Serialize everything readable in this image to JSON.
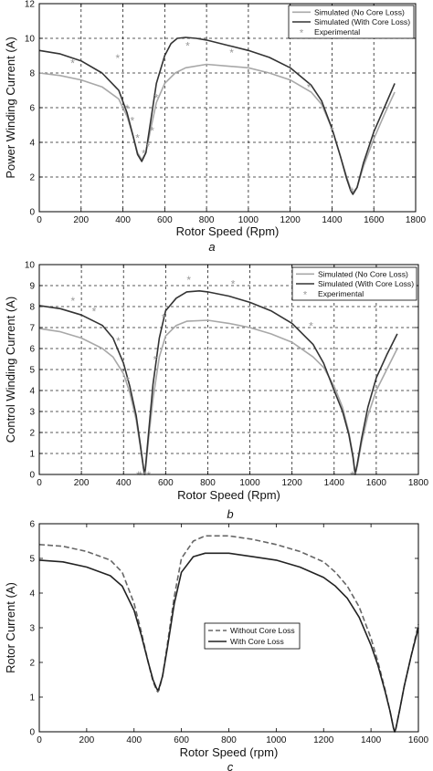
{
  "figure": {
    "panel_labels": [
      "a",
      "b",
      "c"
    ]
  },
  "chart_data": [
    {
      "type": "line",
      "panel_label": "a",
      "xlabel": "Rotor Speed (Rpm)",
      "ylabel": "Power Winding Current (A)",
      "xlim": [
        0,
        1800
      ],
      "ylim": [
        0,
        12
      ],
      "xticks": [
        0,
        200,
        400,
        600,
        800,
        1000,
        1200,
        1400,
        1600,
        1800
      ],
      "yticks": [
        0,
        2,
        4,
        6,
        8,
        10,
        12
      ],
      "grid": true,
      "legend_position": "top-right",
      "series": [
        {
          "name": "Simulated (No Core Loss)",
          "style": "line",
          "color": "#a8a8a8",
          "x": [
            0,
            100,
            200,
            300,
            380,
            420,
            450,
            470,
            490,
            510,
            530,
            560,
            600,
            650,
            700,
            800,
            900,
            1000,
            1100,
            1200,
            1300,
            1350,
            1400,
            1440,
            1470,
            1490,
            1500,
            1520,
            1550,
            1600,
            1650,
            1700
          ],
          "y": [
            8.0,
            7.85,
            7.6,
            7.2,
            6.5,
            5.5,
            4.3,
            3.4,
            3.0,
            3.4,
            4.6,
            6.3,
            7.4,
            8.0,
            8.3,
            8.5,
            8.4,
            8.3,
            8.0,
            7.6,
            6.9,
            6.2,
            4.8,
            3.2,
            2.0,
            1.3,
            1.1,
            1.4,
            2.6,
            4.2,
            5.6,
            6.9
          ]
        },
        {
          "name": "Simulated (With Core Loss)",
          "style": "line",
          "color": "#333333",
          "x": [
            0,
            100,
            200,
            300,
            380,
            420,
            450,
            470,
            490,
            510,
            530,
            560,
            600,
            630,
            660,
            700,
            750,
            800,
            900,
            1000,
            1100,
            1200,
            1300,
            1350,
            1400,
            1440,
            1470,
            1490,
            1500,
            1520,
            1550,
            1600,
            1650,
            1700
          ],
          "y": [
            9.3,
            9.1,
            8.7,
            8.0,
            7.0,
            5.7,
            4.3,
            3.3,
            2.9,
            3.4,
            5.0,
            7.4,
            9.0,
            9.7,
            10.0,
            10.05,
            10.0,
            9.9,
            9.6,
            9.3,
            8.9,
            8.3,
            7.3,
            6.4,
            4.8,
            3.2,
            1.9,
            1.2,
            1.0,
            1.4,
            2.8,
            4.6,
            6.0,
            7.4
          ]
        },
        {
          "name": "Experimental",
          "style": "markers",
          "color": "#999999",
          "x": [
            160,
            375,
            420,
            445,
            470,
            500,
            520,
            540,
            560,
            710,
            920,
            1290,
            1400,
            1495
          ],
          "y": [
            8.6,
            8.9,
            6.0,
            5.3,
            4.3,
            3.4,
            3.8,
            4.7,
            6.6,
            9.6,
            9.2,
            7.2,
            4.7,
            1.2
          ]
        }
      ]
    },
    {
      "type": "line",
      "panel_label": "b",
      "xlabel": "Rotor Speed (Rpm)",
      "ylabel": "Control Winding Current (A)",
      "xlim": [
        0,
        1800
      ],
      "ylim": [
        0,
        10
      ],
      "xticks": [
        0,
        200,
        400,
        600,
        800,
        1000,
        1200,
        1400,
        1600,
        1800
      ],
      "yticks": [
        0,
        1,
        2,
        3,
        4,
        5,
        6,
        7,
        8,
        9,
        10
      ],
      "grid": true,
      "legend_position": "top-right",
      "series": [
        {
          "name": "Simulated (No Core Loss)",
          "style": "line",
          "color": "#a8a8a8",
          "x": [
            0,
            100,
            200,
            300,
            350,
            400,
            430,
            460,
            480,
            495,
            500,
            505,
            520,
            540,
            570,
            600,
            650,
            700,
            800,
            900,
            1000,
            1100,
            1200,
            1300,
            1350,
            1400,
            1440,
            1470,
            1490,
            1500,
            1510,
            1530,
            1560,
            1600,
            1650,
            1700
          ],
          "y": [
            6.95,
            6.8,
            6.5,
            6.0,
            5.6,
            4.8,
            3.9,
            2.6,
            1.3,
            0.3,
            0.0,
            0.3,
            1.8,
            3.6,
            5.6,
            6.6,
            7.1,
            7.3,
            7.35,
            7.2,
            7.0,
            6.7,
            6.3,
            5.6,
            5.1,
            4.2,
            3.2,
            2.0,
            0.9,
            0.0,
            0.4,
            1.5,
            2.8,
            4.0,
            5.0,
            6.0
          ]
        },
        {
          "name": "Simulated (With Core Loss)",
          "style": "line",
          "color": "#333333",
          "x": [
            0,
            100,
            200,
            300,
            350,
            400,
            430,
            460,
            480,
            495,
            500,
            505,
            520,
            540,
            570,
            600,
            650,
            700,
            760,
            800,
            900,
            1000,
            1100,
            1200,
            1300,
            1350,
            1400,
            1440,
            1470,
            1490,
            1500,
            1510,
            1530,
            1560,
            1600,
            1650,
            1700
          ],
          "y": [
            8.05,
            7.9,
            7.6,
            7.1,
            6.5,
            5.3,
            4.2,
            2.8,
            1.4,
            0.3,
            0.0,
            0.4,
            2.1,
            4.3,
            6.5,
            7.8,
            8.4,
            8.7,
            8.75,
            8.7,
            8.5,
            8.2,
            7.8,
            7.2,
            6.2,
            5.3,
            4.0,
            3.0,
            1.9,
            0.8,
            0.0,
            0.5,
            1.7,
            3.2,
            4.6,
            5.7,
            6.7
          ]
        },
        {
          "name": "Experimental",
          "style": "markers",
          "color": "#999999",
          "x": [
            160,
            260,
            375,
            420,
            470,
            480,
            500,
            520,
            550,
            590,
            710,
            920,
            1290,
            1485,
            1495
          ],
          "y": [
            8.3,
            7.8,
            6.4,
            4.5,
            0.0,
            0.0,
            0.0,
            0.0,
            5.5,
            7.5,
            9.3,
            9.1,
            7.1,
            0.0,
            0.0
          ]
        }
      ]
    },
    {
      "type": "line",
      "panel_label": "c",
      "xlabel": "Rotor Speed (rpm)",
      "ylabel": "Rotor Current (A)",
      "xlim": [
        0,
        1600
      ],
      "ylim": [
        0,
        6
      ],
      "xticks": [
        0,
        200,
        400,
        600,
        800,
        1000,
        1200,
        1400,
        1600
      ],
      "yticks": [
        0,
        1,
        2,
        3,
        4,
        5,
        6
      ],
      "grid": false,
      "legend_position": "center",
      "series": [
        {
          "name": "Without Core Loss",
          "style": "dashed",
          "color": "#666666",
          "x": [
            0,
            100,
            200,
            300,
            350,
            400,
            430,
            460,
            480,
            495,
            500,
            505,
            520,
            540,
            570,
            600,
            650,
            700,
            800,
            900,
            1000,
            1100,
            1200,
            1250,
            1300,
            1350,
            1400,
            1430,
            1460,
            1480,
            1495,
            1500,
            1505,
            1520,
            1540,
            1570,
            1600
          ],
          "y": [
            5.4,
            5.35,
            5.2,
            4.95,
            4.6,
            3.7,
            2.9,
            2.0,
            1.45,
            1.2,
            1.15,
            1.2,
            1.6,
            2.5,
            3.9,
            5.0,
            5.5,
            5.65,
            5.65,
            5.55,
            5.4,
            5.2,
            4.9,
            4.6,
            4.2,
            3.6,
            2.7,
            2.0,
            1.2,
            0.6,
            0.1,
            0.0,
            0.1,
            0.6,
            1.3,
            2.2,
            3.1
          ]
        },
        {
          "name": "With Core Loss",
          "style": "line",
          "color": "#222222",
          "x": [
            0,
            100,
            200,
            300,
            350,
            400,
            430,
            460,
            480,
            495,
            500,
            505,
            520,
            540,
            570,
            600,
            650,
            700,
            800,
            900,
            1000,
            1100,
            1200,
            1250,
            1300,
            1350,
            1400,
            1430,
            1460,
            1480,
            1495,
            1500,
            1505,
            1520,
            1540,
            1570,
            1600
          ],
          "y": [
            4.95,
            4.9,
            4.75,
            4.5,
            4.2,
            3.5,
            2.8,
            2.0,
            1.5,
            1.25,
            1.2,
            1.25,
            1.6,
            2.4,
            3.7,
            4.6,
            5.05,
            5.15,
            5.15,
            5.05,
            4.95,
            4.75,
            4.45,
            4.2,
            3.85,
            3.3,
            2.5,
            1.9,
            1.15,
            0.6,
            0.1,
            0.0,
            0.1,
            0.6,
            1.3,
            2.2,
            3.0
          ]
        }
      ]
    }
  ]
}
